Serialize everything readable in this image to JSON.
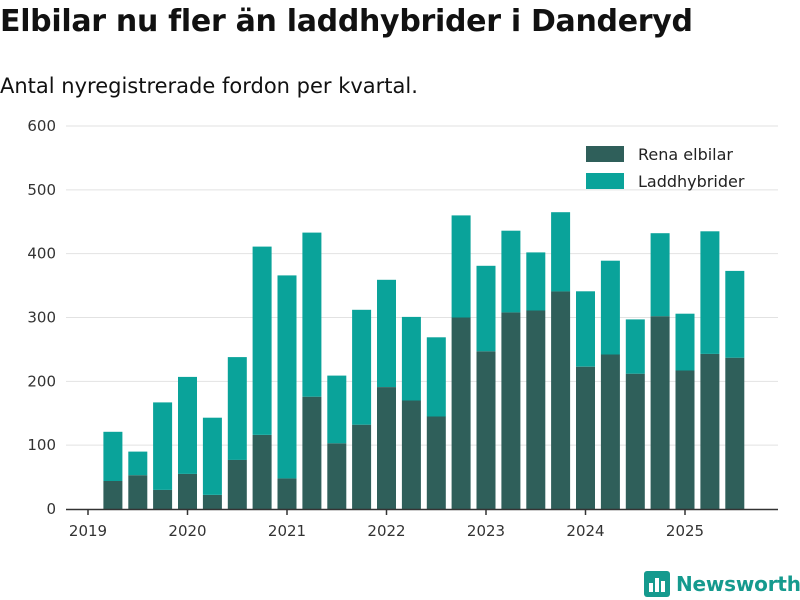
{
  "title": "Elbilar nu fler än laddhybrider i Danderyd",
  "subtitle": "Antal nyregistrerade fordon per kvartal.",
  "brand": {
    "name": "Newsworthy",
    "color": "#159a8e"
  },
  "colors": {
    "rena": "#2f5f5a",
    "ladd": "#0aa39a",
    "grid": "#e2e2e2",
    "axis": "#333333"
  },
  "chart_data": {
    "type": "bar",
    "stacked": true,
    "categories": [
      "2019 Q2",
      "2019 Q3",
      "2019 Q4",
      "2020 Q1",
      "2020 Q2",
      "2020 Q3",
      "2020 Q4",
      "2021 Q1",
      "2021 Q2",
      "2021 Q3",
      "2021 Q4",
      "2022 Q1",
      "2022 Q2",
      "2022 Q3",
      "2022 Q4",
      "2023 Q1",
      "2023 Q2",
      "2023 Q3",
      "2023 Q4",
      "2024 Q1",
      "2024 Q2",
      "2024 Q3",
      "2024 Q4",
      "2025 Q1",
      "2025 Q2",
      "2025 Q3"
    ],
    "series": [
      {
        "name": "Rena elbilar",
        "values": [
          44,
          53,
          30,
          55,
          22,
          77,
          116,
          48,
          176,
          103,
          132,
          191,
          170,
          145,
          300,
          247,
          308,
          311,
          341,
          223,
          242,
          212,
          302,
          217,
          243,
          237
        ]
      },
      {
        "name": "Laddhybrider",
        "values": [
          77,
          37,
          137,
          152,
          121,
          161,
          295,
          318,
          257,
          106,
          180,
          168,
          131,
          124,
          160,
          134,
          128,
          91,
          124,
          118,
          147,
          85,
          130,
          89,
          192,
          136
        ]
      }
    ],
    "x_ticks": [
      "2019",
      "2020",
      "2021",
      "2022",
      "2023",
      "2024",
      "2025"
    ],
    "y_ticks": [
      "0",
      "100",
      "200",
      "300",
      "400",
      "500",
      "600"
    ],
    "ylim": [
      0,
      600
    ],
    "legend": [
      "Rena elbilar",
      "Laddhybrider"
    ],
    "legend_position": "top-right",
    "grid": true,
    "xlabel": "",
    "ylabel": ""
  }
}
